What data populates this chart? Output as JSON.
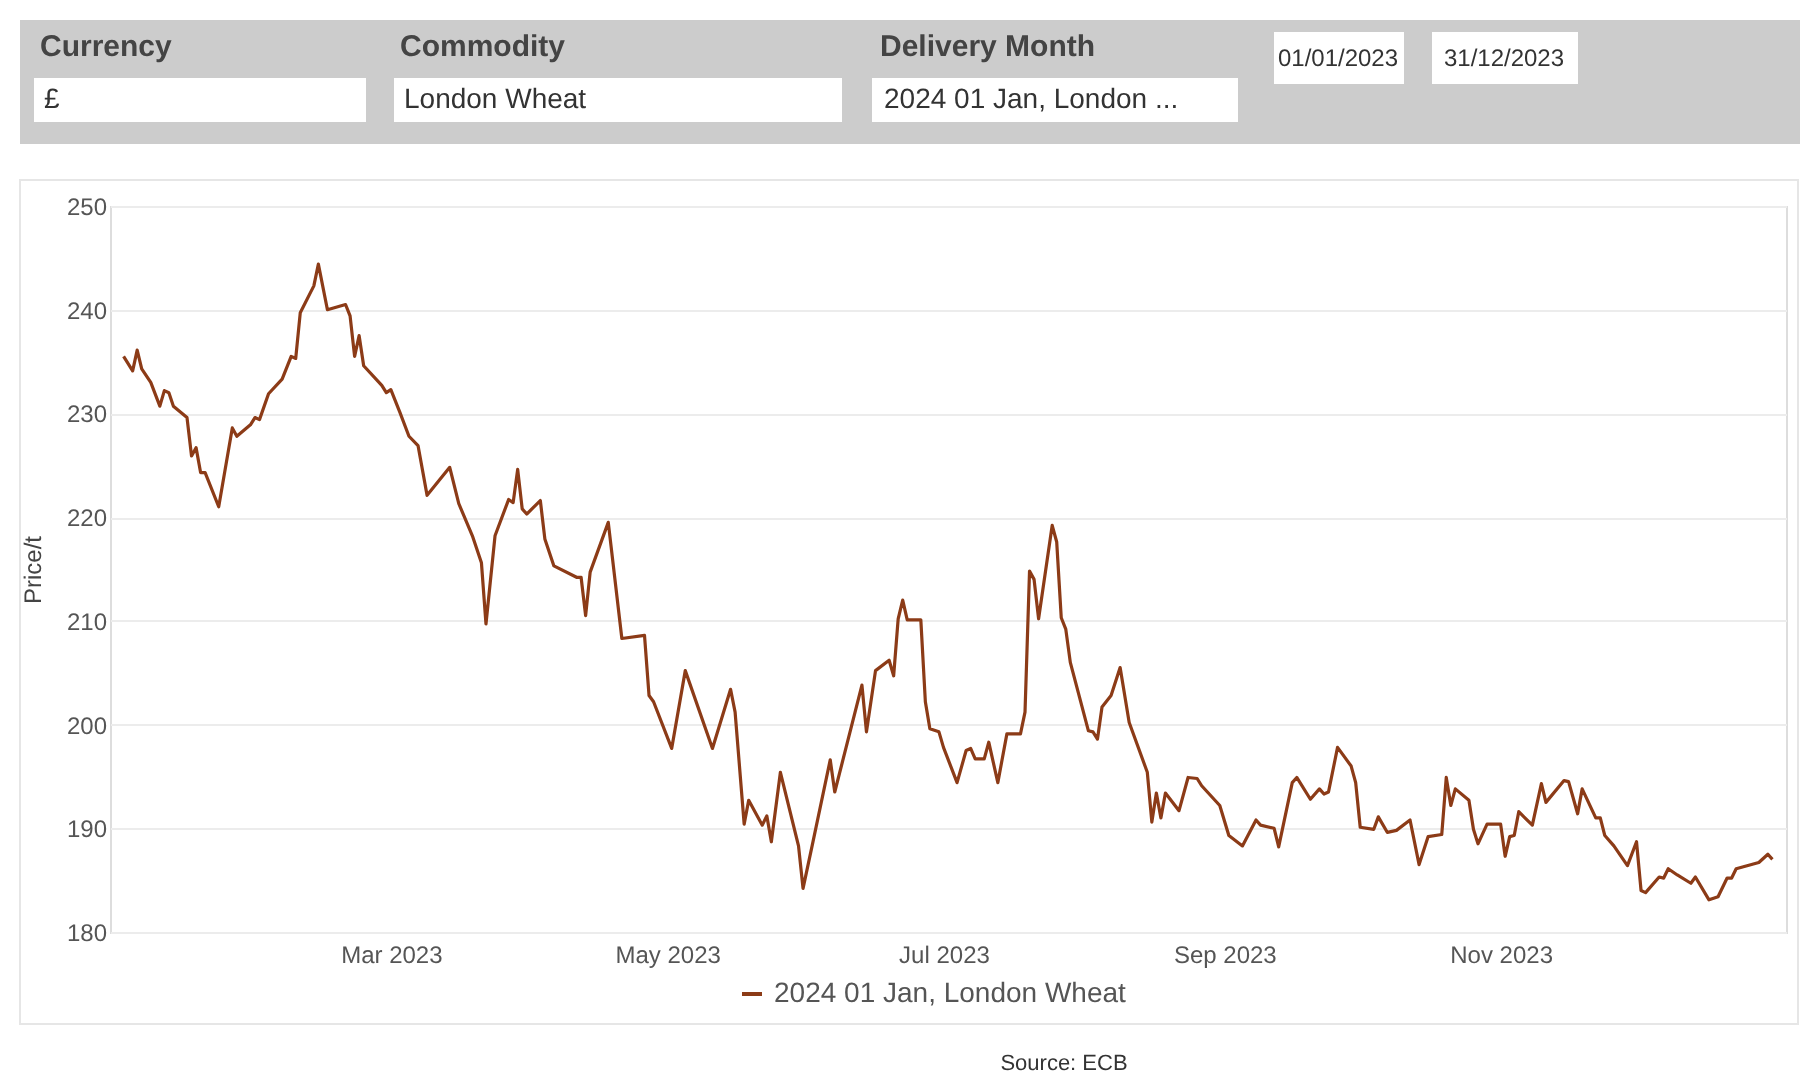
{
  "chart_data": {
    "type": "line",
    "ylabel": "Price/t",
    "x": [
      "2023-01-01",
      "2023-01-03",
      "2023-01-04",
      "2023-01-05",
      "2023-01-07",
      "2023-01-09",
      "2023-01-10",
      "2023-01-11",
      "2023-01-12",
      "2023-01-15",
      "2023-01-16",
      "2023-01-17",
      "2023-01-18",
      "2023-01-19",
      "2023-01-22",
      "2023-01-25",
      "2023-01-26",
      "2023-01-29",
      "2023-01-30",
      "2023-01-31",
      "2023-02-02",
      "2023-02-05",
      "2023-02-07",
      "2023-02-08",
      "2023-02-09",
      "2023-02-12",
      "2023-02-13",
      "2023-02-15",
      "2023-02-19",
      "2023-02-20",
      "2023-02-21",
      "2023-02-22",
      "2023-02-23",
      "2023-02-27",
      "2023-02-28",
      "2023-03-01",
      "2023-03-03",
      "2023-03-05",
      "2023-03-07",
      "2023-03-09",
      "2023-03-14",
      "2023-03-16",
      "2023-03-19",
      "2023-03-21",
      "2023-03-22",
      "2023-03-24",
      "2023-03-27",
      "2023-03-28",
      "2023-03-29",
      "2023-03-30",
      "2023-03-31",
      "2023-04-03",
      "2023-04-04",
      "2023-04-06",
      "2023-04-11",
      "2023-04-12",
      "2023-04-13",
      "2023-04-14",
      "2023-04-18",
      "2023-04-21",
      "2023-04-26",
      "2023-04-27",
      "2023-04-28",
      "2023-05-02",
      "2023-05-05",
      "2023-05-11",
      "2023-05-15",
      "2023-05-16",
      "2023-05-18",
      "2023-05-19",
      "2023-05-22",
      "2023-05-23",
      "2023-05-24",
      "2023-05-26",
      "2023-05-30",
      "2023-05-31",
      "2023-06-02",
      "2023-06-06",
      "2023-06-07",
      "2023-06-13",
      "2023-06-14",
      "2023-06-16",
      "2023-06-19",
      "2023-06-20",
      "2023-06-21",
      "2023-06-22",
      "2023-06-23",
      "2023-06-26",
      "2023-06-27",
      "2023-06-28",
      "2023-06-30",
      "2023-07-01",
      "2023-07-04",
      "2023-07-06",
      "2023-07-07",
      "2023-07-08",
      "2023-07-10",
      "2023-07-11",
      "2023-07-13",
      "2023-07-15",
      "2023-07-18",
      "2023-07-19",
      "2023-07-20",
      "2023-07-21",
      "2023-07-22",
      "2023-07-25",
      "2023-07-26",
      "2023-07-27",
      "2023-07-28",
      "2023-07-29",
      "2023-08-02",
      "2023-08-03",
      "2023-08-04",
      "2023-08-05",
      "2023-08-07",
      "2023-08-09",
      "2023-08-11",
      "2023-08-15",
      "2023-08-16",
      "2023-08-17",
      "2023-08-18",
      "2023-08-19",
      "2023-08-22",
      "2023-08-24",
      "2023-08-26",
      "2023-08-27",
      "2023-08-31",
      "2023-09-02",
      "2023-09-05",
      "2023-09-08",
      "2023-09-09",
      "2023-09-12",
      "2023-09-13",
      "2023-09-16",
      "2023-09-17",
      "2023-09-20",
      "2023-09-22",
      "2023-09-23",
      "2023-09-24",
      "2023-09-26",
      "2023-09-29",
      "2023-09-30",
      "2023-10-01",
      "2023-10-04",
      "2023-10-05",
      "2023-10-07",
      "2023-10-09",
      "2023-10-12",
      "2023-10-14",
      "2023-10-16",
      "2023-10-19",
      "2023-10-20",
      "2023-10-21",
      "2023-10-22",
      "2023-10-25",
      "2023-10-26",
      "2023-10-27",
      "2023-10-29",
      "2023-11-01",
      "2023-11-02",
      "2023-11-03",
      "2023-11-04",
      "2023-11-05",
      "2023-11-08",
      "2023-11-10",
      "2023-11-11",
      "2023-11-15",
      "2023-11-16",
      "2023-11-18",
      "2023-11-19",
      "2023-11-22",
      "2023-11-23",
      "2023-11-24",
      "2023-11-26",
      "2023-11-29",
      "2023-12-01",
      "2023-12-02",
      "2023-12-03",
      "2023-12-06",
      "2023-12-07",
      "2023-12-08",
      "2023-12-10",
      "2023-12-13",
      "2023-12-14",
      "2023-12-17",
      "2023-12-19",
      "2023-12-21",
      "2023-12-22",
      "2023-12-23",
      "2023-12-28",
      "2023-12-30",
      "2023-12-31"
    ],
    "series": [
      {
        "name": "2024 01 Jan, London Wheat",
        "color": "#8c3b17",
        "values": [
          235.5,
          234.1,
          236.1,
          234.3,
          233.0,
          230.7,
          232.2,
          232.0,
          230.7,
          229.6,
          225.9,
          226.7,
          224.3,
          224.3,
          221.0,
          228.6,
          227.8,
          228.9,
          229.6,
          229.4,
          231.9,
          233.3,
          235.5,
          235.3,
          239.7,
          242.3,
          244.4,
          240.0,
          240.5,
          239.4,
          235.5,
          237.5,
          234.6,
          232.7,
          232.0,
          232.3,
          230.1,
          227.8,
          226.9,
          222.1,
          224.8,
          221.3,
          218.2,
          215.6,
          209.7,
          218.2,
          221.7,
          221.4,
          224.6,
          220.8,
          220.3,
          221.6,
          217.9,
          215.3,
          214.2,
          214.2,
          210.5,
          214.7,
          219.5,
          208.3,
          208.6,
          202.8,
          202.2,
          197.7,
          205.2,
          197.7,
          203.4,
          201.2,
          190.4,
          192.7,
          190.3,
          191.2,
          188.7,
          195.4,
          188.3,
          184.2,
          188.3,
          196.6,
          193.5,
          203.8,
          199.3,
          205.2,
          206.2,
          204.7,
          210.2,
          212.0,
          210.1,
          210.1,
          202.2,
          199.6,
          199.3,
          197.8,
          194.4,
          197.5,
          197.7,
          196.7,
          196.7,
          198.3,
          194.4,
          199.1,
          199.1,
          201.2,
          214.8,
          214.0,
          210.2,
          219.2,
          217.6,
          210.3,
          209.2,
          206.0,
          199.4,
          199.3,
          198.6,
          201.7,
          202.8,
          205.5,
          200.2,
          195.4,
          190.6,
          193.4,
          191.0,
          193.4,
          191.7,
          194.9,
          194.8,
          194.1,
          192.2,
          189.3,
          188.3,
          190.8,
          190.3,
          190.0,
          188.2,
          194.4,
          194.9,
          192.8,
          193.8,
          193.3,
          193.5,
          197.8,
          196.0,
          194.4,
          190.1,
          189.9,
          191.1,
          189.6,
          189.8,
          190.8,
          186.5,
          189.2,
          189.4,
          194.9,
          192.2,
          193.8,
          192.7,
          189.9,
          188.5,
          190.4,
          190.4,
          187.3,
          189.2,
          189.3,
          191.6,
          190.3,
          194.3,
          192.5,
          194.6,
          194.5,
          191.4,
          193.8,
          191.0,
          191.0,
          189.3,
          188.3,
          186.4,
          188.7,
          184.0,
          183.8,
          185.3,
          185.2,
          186.1,
          185.5,
          184.7,
          185.3,
          183.1,
          183.4,
          185.2,
          185.2,
          186.1,
          186.7,
          187.5,
          187.0
        ]
      }
    ],
    "xlim": [
      "2022-12-29",
      "2024-01-03"
    ],
    "xticks": [
      {
        "value": "2023-03-01",
        "label": "Mar 2023"
      },
      {
        "value": "2023-05-01",
        "label": "May 2023"
      },
      {
        "value": "2023-07-01",
        "label": "Jul 2023"
      },
      {
        "value": "2023-09-01",
        "label": "Sep 2023"
      },
      {
        "value": "2023-11-01",
        "label": "Nov 2023"
      }
    ],
    "ylim": [
      180,
      250
    ],
    "yticks": [
      180,
      190,
      200,
      210,
      220,
      230,
      240,
      250
    ],
    "grid": "y",
    "legend": "bottom",
    "annotations": [
      "Currency",
      "£",
      "Commodity",
      "London Wheat",
      "Delivery Month",
      "2024 01 Jan, London ...",
      "01/01/2023",
      "31/12/2023",
      "Source: ECB"
    ]
  }
}
